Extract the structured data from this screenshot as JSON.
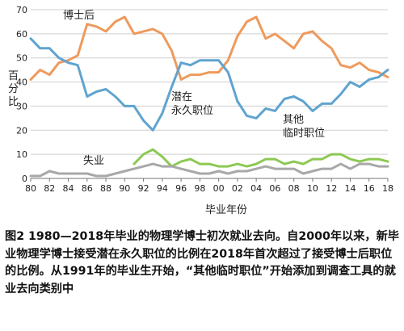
{
  "chart_data": {
    "type": "line",
    "xlabel": "毕业年份",
    "ylabel": "百分比",
    "ylim": [
      0,
      70
    ],
    "yticks": [
      0,
      10,
      20,
      30,
      40,
      50,
      60,
      70
    ],
    "xlim": [
      1980,
      2018
    ],
    "xtick_labels": [
      "80",
      "82",
      "84",
      "86",
      "88",
      "90",
      "92",
      "94",
      "96",
      "98",
      "00",
      "02",
      "04",
      "06",
      "08",
      "10",
      "12",
      "14",
      "16",
      "18"
    ],
    "grid": true,
    "series": [
      {
        "name": "博士后",
        "color": "#ee9a5c",
        "label_lines": [
          "博士后"
        ],
        "x": [
          1980,
          1981,
          1982,
          1983,
          1984,
          1985,
          1986,
          1987,
          1988,
          1989,
          1990,
          1991,
          1992,
          1993,
          1994,
          1995,
          1996,
          1997,
          1998,
          1999,
          2000,
          2001,
          2002,
          2003,
          2004,
          2005,
          2006,
          2007,
          2008,
          2009,
          2010,
          2011,
          2012,
          2013,
          2014,
          2015,
          2016,
          2017,
          2018
        ],
        "values": [
          41,
          45,
          43,
          48,
          49,
          51,
          64,
          63,
          61,
          65,
          67,
          60,
          61,
          62,
          60,
          53,
          41,
          43,
          43,
          44,
          44,
          49,
          59,
          65,
          67,
          58,
          60,
          57,
          54,
          60,
          61,
          57,
          54,
          47,
          46,
          48,
          45,
          44,
          42
        ]
      },
      {
        "name": "潜在永久职位",
        "color": "#5fa4cf",
        "label_lines": [
          "潜在",
          "永久职位"
        ],
        "x": [
          1980,
          1981,
          1982,
          1983,
          1984,
          1985,
          1986,
          1987,
          1988,
          1989,
          1990,
          1991,
          1992,
          1993,
          1994,
          1995,
          1996,
          1997,
          1998,
          1999,
          2000,
          2001,
          2002,
          2003,
          2004,
          2005,
          2006,
          2007,
          2008,
          2009,
          2010,
          2011,
          2012,
          2013,
          2014,
          2015,
          2016,
          2017,
          2018
        ],
        "values": [
          58,
          54,
          54,
          50,
          48,
          47,
          34,
          36,
          37,
          34,
          30,
          30,
          24,
          20,
          27,
          38,
          48,
          47,
          49,
          49,
          49,
          44,
          32,
          26,
          25,
          29,
          28,
          33,
          34,
          32,
          28,
          31,
          31,
          35,
          40,
          38,
          41,
          42,
          45
        ]
      },
      {
        "name": "其他临时职位",
        "color": "#8dc853",
        "label_lines": [
          "其他",
          "临时职位"
        ],
        "x": [
          1991,
          1992,
          1993,
          1994,
          1995,
          1996,
          1997,
          1998,
          1999,
          2000,
          2001,
          2002,
          2003,
          2004,
          2005,
          2006,
          2007,
          2008,
          2009,
          2010,
          2011,
          2012,
          2013,
          2014,
          2015,
          2016,
          2017,
          2018
        ],
        "values": [
          6,
          10,
          12,
          9,
          5,
          7,
          8,
          6,
          6,
          5,
          5,
          6,
          5,
          6,
          8,
          8,
          6,
          7,
          6,
          8,
          8,
          10,
          10,
          8,
          7,
          8,
          8,
          7
        ]
      },
      {
        "name": "失业",
        "color": "#a8a8a8",
        "label_lines": [
          "失业"
        ],
        "x": [
          1980,
          1981,
          1982,
          1983,
          1984,
          1985,
          1986,
          1987,
          1988,
          1989,
          1990,
          1991,
          1992,
          1993,
          1994,
          1995,
          1996,
          1997,
          1998,
          1999,
          2000,
          2001,
          2002,
          2003,
          2004,
          2005,
          2006,
          2007,
          2008,
          2009,
          2010,
          2011,
          2012,
          2013,
          2014,
          2015,
          2016,
          2017,
          2018
        ],
        "values": [
          1,
          1,
          3,
          2,
          2,
          2,
          2,
          1,
          1,
          2,
          3,
          4,
          5,
          6,
          5,
          5,
          4,
          3,
          2,
          2,
          3,
          2,
          3,
          3,
          4,
          5,
          4,
          4,
          4,
          2,
          3,
          4,
          4,
          6,
          4,
          6,
          6,
          5,
          5
        ]
      }
    ]
  },
  "caption": "图2 1980—2018年毕业的物理学博士初次就业去向。自2000年以来，新毕业物理学博士接受潜在永久职位的比例在2018年首次超过了接受博士后职位的比例。从1991年的毕业生开始，“其他临时职位”开始添加到调查工具的就业去向类别中"
}
